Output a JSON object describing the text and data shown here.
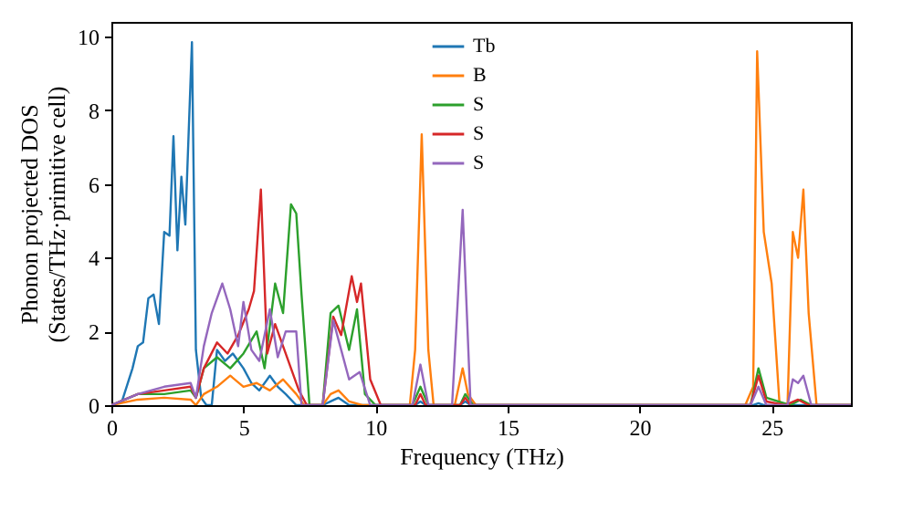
{
  "chart_data": {
    "type": "line",
    "xlabel": "Frequency (THz)",
    "ylabel": "Phonon projected DOS\n(States/THz·primitive cell)",
    "xlim": [
      0,
      28
    ],
    "ylim": [
      0,
      10.4
    ],
    "xticks": [
      0,
      5,
      10,
      15,
      20,
      25
    ],
    "yticks": [
      0,
      2,
      4,
      6,
      8,
      10
    ],
    "grid": false,
    "legend": "top",
    "line_style": "solid",
    "marker": "none",
    "series": [
      {
        "name": "Tb",
        "color": "#1f77b4",
        "x": [
          0,
          0.4,
          0.8,
          1.0,
          1.2,
          1.4,
          1.6,
          1.8,
          2.0,
          2.2,
          2.35,
          2.5,
          2.65,
          2.8,
          3.05,
          3.2,
          3.4,
          3.6,
          3.8,
          4.0,
          4.3,
          4.6,
          5.0,
          5.3,
          5.6,
          6.0,
          6.3,
          6.6,
          7.0,
          7.2,
          8.0,
          8.3,
          8.6,
          9.0,
          11.5,
          11.7,
          11.9,
          13.2,
          13.4,
          13.6,
          24.3,
          24.5,
          24.7,
          26,
          28
        ],
        "values": [
          0,
          0.1,
          1.0,
          1.6,
          1.7,
          2.9,
          3.0,
          2.2,
          4.7,
          4.6,
          7.3,
          4.2,
          6.2,
          4.9,
          9.85,
          1.5,
          0.2,
          0,
          0,
          1.5,
          1.2,
          1.4,
          1.0,
          0.6,
          0.4,
          0.8,
          0.5,
          0.3,
          0,
          0,
          0,
          0.1,
          0.2,
          0,
          0,
          0.1,
          0,
          0,
          0.1,
          0,
          0,
          0.05,
          0,
          0,
          0
        ]
      },
      {
        "name": "B",
        "color": "#ff7f0e",
        "x": [
          0,
          1,
          2,
          3,
          3.2,
          3.5,
          4.0,
          4.5,
          5.0,
          5.5,
          6.0,
          6.5,
          7.0,
          7.3,
          8.0,
          8.3,
          8.6,
          9.0,
          9.5,
          11.3,
          11.5,
          11.75,
          12.0,
          12.2,
          13.0,
          13.3,
          13.5,
          13.8,
          24.0,
          24.3,
          24.45,
          24.7,
          25.0,
          25.3,
          25.6,
          25.8,
          26.0,
          26.2,
          26.4,
          26.7,
          28
        ],
        "values": [
          0,
          0.15,
          0.2,
          0.15,
          0,
          0.3,
          0.5,
          0.8,
          0.5,
          0.6,
          0.4,
          0.7,
          0.3,
          0,
          0,
          0.3,
          0.4,
          0.1,
          0,
          0,
          1.5,
          7.35,
          1.5,
          0,
          0,
          1.0,
          0.3,
          0,
          0,
          0.5,
          9.6,
          4.7,
          3.3,
          0,
          0,
          4.7,
          4.0,
          5.85,
          2.5,
          0,
          0
        ]
      },
      {
        "name": "S",
        "color": "#2ca02c",
        "x": [
          0,
          1,
          2,
          3,
          3.2,
          3.5,
          4.0,
          4.5,
          5.0,
          5.5,
          5.8,
          6.2,
          6.5,
          6.8,
          7.0,
          7.2,
          7.5,
          8.0,
          8.3,
          8.6,
          9.0,
          9.3,
          9.6,
          10,
          11.4,
          11.7,
          12,
          13.2,
          13.4,
          13.7,
          24.2,
          24.5,
          24.8,
          25.7,
          26.1,
          26.5,
          28
        ],
        "values": [
          0,
          0.3,
          0.3,
          0.4,
          0.2,
          1.0,
          1.3,
          1.0,
          1.4,
          2.0,
          1.0,
          3.3,
          2.5,
          5.45,
          5.2,
          3.0,
          0,
          0,
          2.5,
          2.7,
          1.5,
          2.6,
          0.3,
          0,
          0,
          0.5,
          0,
          0,
          0.3,
          0,
          0,
          1.0,
          0.2,
          0,
          0.15,
          0,
          0
        ]
      },
      {
        "name": "S",
        "color": "#d62728",
        "x": [
          0,
          1,
          2,
          3,
          3.2,
          3.5,
          4.0,
          4.4,
          4.8,
          5.2,
          5.4,
          5.66,
          5.9,
          6.2,
          6.5,
          6.8,
          7.1,
          7.4,
          8.0,
          8.4,
          8.7,
          9.1,
          9.3,
          9.45,
          9.8,
          10.2,
          11.5,
          11.7,
          11.9,
          13.2,
          13.4,
          13.6,
          24.2,
          24.5,
          24.8,
          25.5,
          26.0,
          26.4,
          28
        ],
        "values": [
          0,
          0.3,
          0.4,
          0.5,
          0.2,
          1.0,
          1.7,
          1.4,
          1.9,
          2.6,
          3.1,
          5.85,
          1.4,
          2.2,
          1.6,
          1.0,
          0.4,
          0,
          0,
          2.4,
          1.9,
          3.5,
          2.8,
          3.3,
          0.7,
          0,
          0,
          0.3,
          0,
          0,
          0.2,
          0,
          0,
          0.8,
          0.1,
          0,
          0.15,
          0,
          0
        ]
      },
      {
        "name": "S",
        "color": "#9467bd",
        "x": [
          0,
          1,
          2,
          3,
          3.2,
          3.5,
          3.8,
          4.2,
          4.5,
          4.8,
          5.0,
          5.3,
          5.6,
          6.0,
          6.3,
          6.6,
          7.0,
          7.2,
          8.0,
          8.4,
          8.7,
          9.0,
          9.4,
          9.8,
          11.4,
          11.7,
          12.0,
          12.9,
          13.3,
          13.6,
          24.2,
          24.5,
          24.8,
          25.6,
          25.8,
          26.0,
          26.2,
          26.5,
          28
        ],
        "values": [
          0,
          0.3,
          0.5,
          0.6,
          0.2,
          1.6,
          2.5,
          3.3,
          2.6,
          1.6,
          2.8,
          1.5,
          1.2,
          2.6,
          1.3,
          2.0,
          2.0,
          0,
          0,
          2.3,
          1.5,
          0.7,
          0.9,
          0,
          0,
          1.1,
          0,
          0,
          5.3,
          0,
          0,
          0.5,
          0,
          0,
          0.7,
          0.6,
          0.8,
          0,
          0
        ]
      }
    ]
  }
}
